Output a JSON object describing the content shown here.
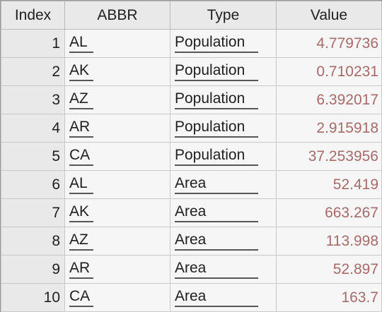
{
  "table": {
    "headers": [
      "Index",
      "ABBR",
      "Type",
      "Value"
    ],
    "rows": [
      {
        "index": "1",
        "abbr": "AL",
        "type": "Population",
        "value": "4.779736"
      },
      {
        "index": "2",
        "abbr": "AK",
        "type": "Population",
        "value": "0.710231"
      },
      {
        "index": "3",
        "abbr": "AZ",
        "type": "Population",
        "value": "6.392017"
      },
      {
        "index": "4",
        "abbr": "AR",
        "type": "Population",
        "value": "2.915918"
      },
      {
        "index": "5",
        "abbr": "CA",
        "type": "Population",
        "value": "37.253956"
      },
      {
        "index": "6",
        "abbr": "AL",
        "type": "Area",
        "value": "52.419"
      },
      {
        "index": "7",
        "abbr": "AK",
        "type": "Area",
        "value": "663.267"
      },
      {
        "index": "8",
        "abbr": "AZ",
        "type": "Area",
        "value": "113.998"
      },
      {
        "index": "9",
        "abbr": "AR",
        "type": "Area",
        "value": "52.897"
      },
      {
        "index": "10",
        "abbr": "CA",
        "type": "Area",
        "value": "163.7"
      }
    ]
  }
}
